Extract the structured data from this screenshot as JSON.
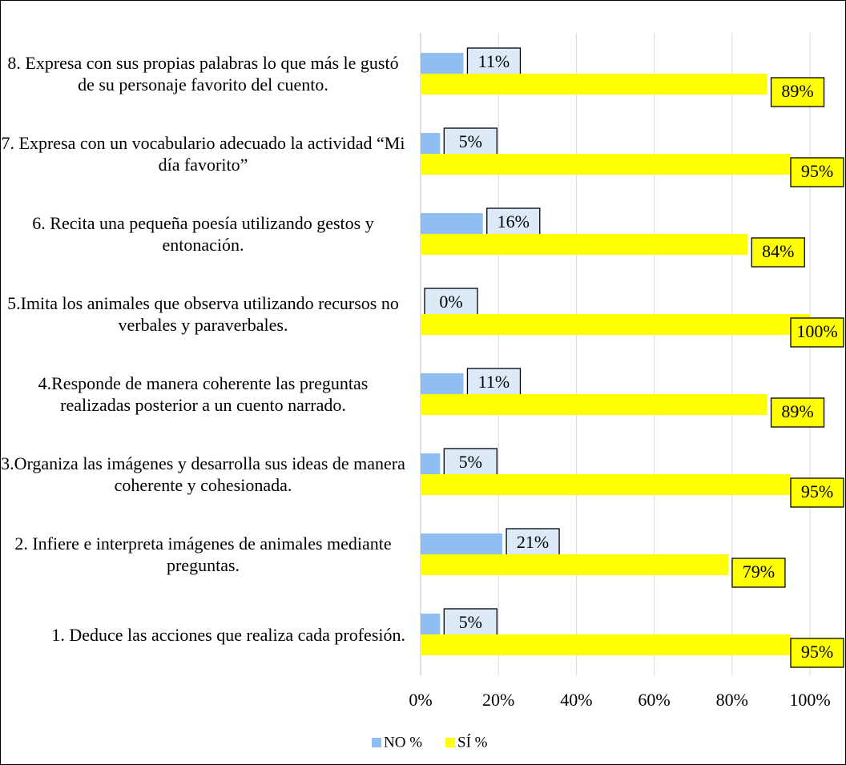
{
  "chart_data": {
    "type": "bar",
    "orientation": "horizontal",
    "categories": [
      "1. Deduce las acciones que realiza cada profesión.",
      "2. Infiere e interpreta imágenes de animales mediante preguntas.",
      "3.Organiza las imágenes y desarrolla sus ideas de manera coherente y cohesionada.",
      "4.Responde de manera coherente las preguntas realizadas posterior a un cuento narrado.",
      "5.Imita los animales que observa utilizando recursos no verbales y paraverbales.",
      "6. Recita una pequeña poesía utilizando gestos y entonación.",
      "7. Expresa con un vocabulario adecuado la actividad “Mi día favorito”",
      "8. Expresa con sus propias palabras lo que más le gustó de su personaje favorito del cuento."
    ],
    "series": [
      {
        "name": "NO %",
        "color": "#8fbff0",
        "label_color": "#dceaf8",
        "values": [
          5,
          21,
          5,
          11,
          0,
          16,
          5,
          11
        ],
        "value_labels": [
          "5%",
          "21%",
          "5%",
          "11%",
          "0%",
          "16%",
          "5%",
          "11%"
        ]
      },
      {
        "name": "SÍ %",
        "color": "#ffff00",
        "label_color": "#ffff00",
        "values": [
          95,
          79,
          95,
          89,
          100,
          84,
          95,
          89
        ],
        "value_labels": [
          "95%",
          "79%",
          "95%",
          "89%",
          "100%",
          "84%",
          "95%",
          "89%"
        ]
      }
    ],
    "xlim": [
      0,
      100
    ],
    "xticks": [
      {
        "value": 0,
        "label": "0%"
      },
      {
        "value": 20,
        "label": "20%"
      },
      {
        "value": 40,
        "label": "40%"
      },
      {
        "value": 60,
        "label": "60%"
      },
      {
        "value": 80,
        "label": "80%"
      },
      {
        "value": 100,
        "label": "100%"
      }
    ],
    "grid": true,
    "legend": "bottom"
  }
}
